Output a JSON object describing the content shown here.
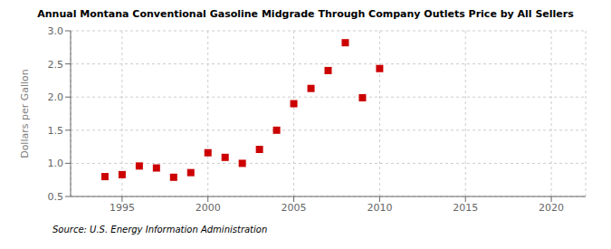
{
  "chart_data": {
    "type": "scatter",
    "title": "Annual Montana Conventional Gasoline Midgrade Through Company Outlets Price by All Sellers",
    "ylabel": "Dollars per Gallon",
    "annotations": [
      "Source: U.S. Energy Information Administration"
    ],
    "x": [
      1994,
      1995,
      1996,
      1997,
      1998,
      1999,
      2000,
      2001,
      2002,
      2003,
      2004,
      2005,
      2006,
      2007,
      2008,
      2009,
      2010
    ],
    "values": [
      0.8,
      0.83,
      0.96,
      0.93,
      0.79,
      0.86,
      1.16,
      1.09,
      1.0,
      1.21,
      1.5,
      1.9,
      2.13,
      2.4,
      2.82,
      1.99,
      2.43
    ],
    "color": "#cc0000",
    "marker": "square",
    "xlim": [
      1992,
      2022
    ],
    "ylim": [
      0.5,
      3.0
    ],
    "xticks": [
      1995,
      2000,
      2005,
      2010,
      2015,
      2020
    ],
    "yticks": [
      0.5,
      {
        "value": 1.0,
        "label": "1.0"
      },
      1.5,
      {
        "value": 2.0,
        "label": "2.0"
      },
      2.5,
      {
        "value": 3.0,
        "label": "3.0"
      }
    ],
    "grid": true
  }
}
